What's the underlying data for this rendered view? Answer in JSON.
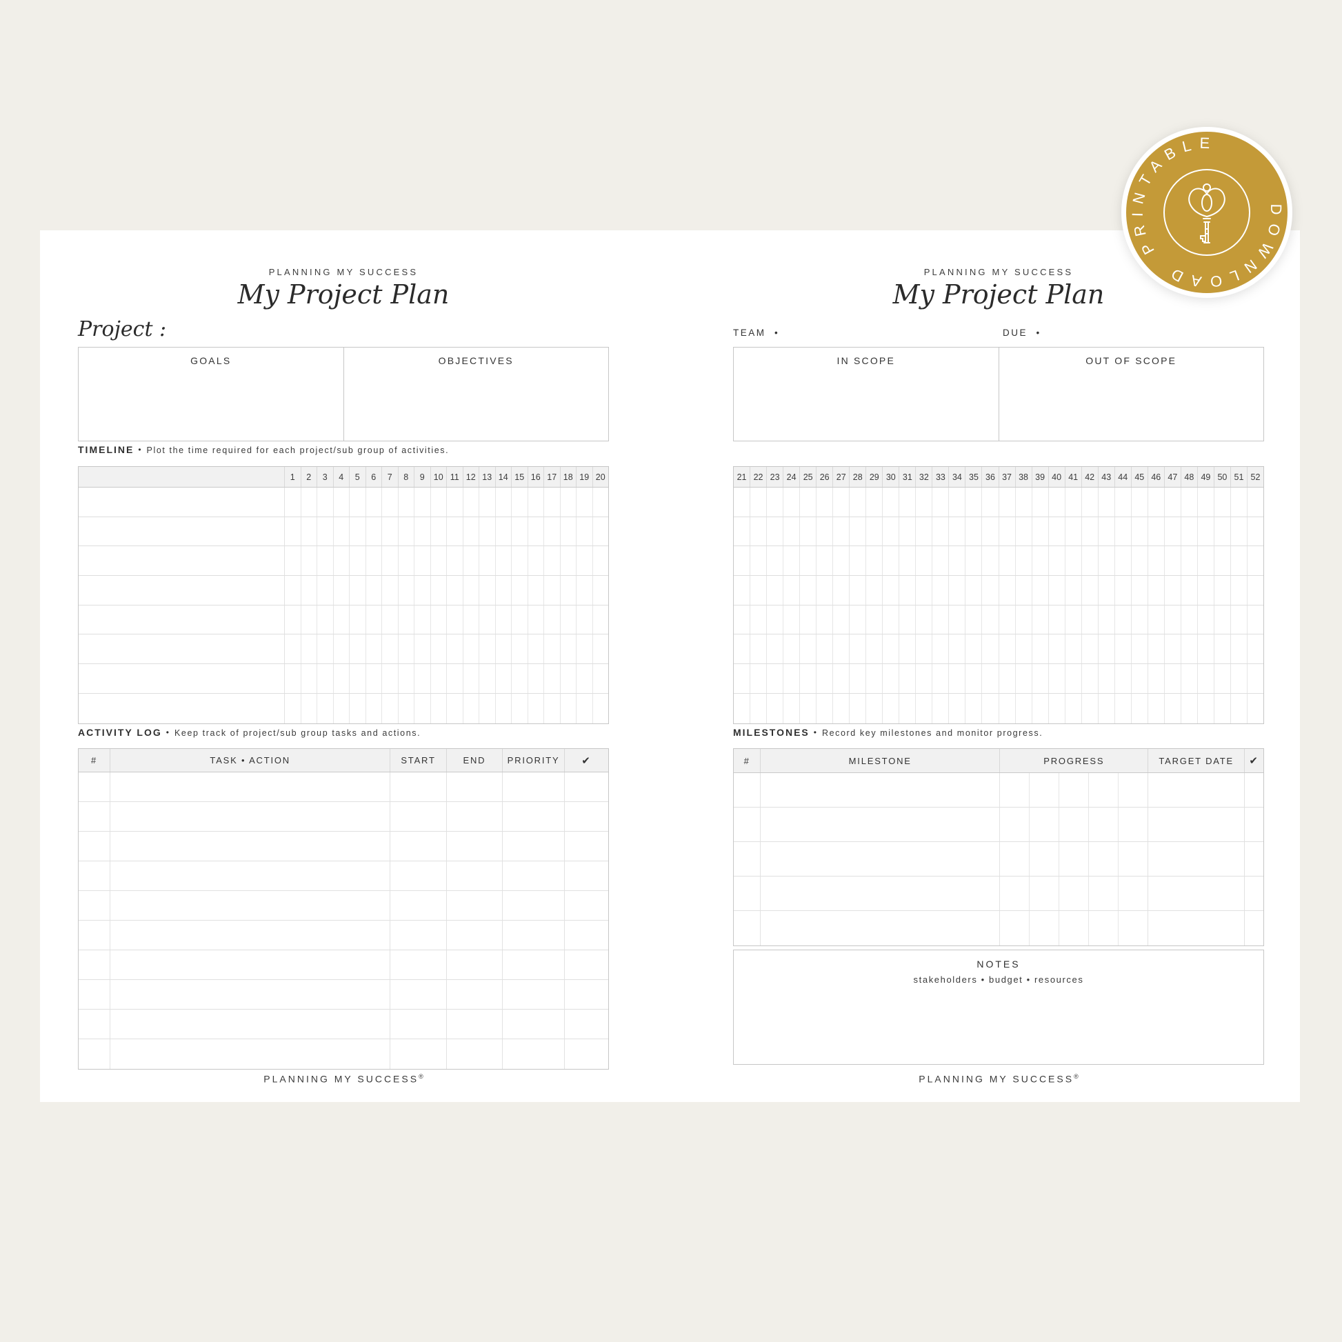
{
  "bullet": "•",
  "colors": {
    "badge_gold": "#c49a38",
    "background_cream": "#f1efe9",
    "paper_white": "#ffffff"
  },
  "badge": {
    "arc_top": "PRINTABLE",
    "arc_bottom": "DOWNLOAD",
    "icon": "key-icon"
  },
  "page_left": {
    "brand": "PLANNING MY SUCCESS",
    "title": "My Project Plan",
    "project_label": "Project :",
    "goals_table": {
      "col1": "GOALS",
      "col2": "OBJECTIVES"
    },
    "timeline": {
      "heading": "TIMELINE",
      "subtitle": "Plot the time required for each project/sub group of activities.",
      "week_numbers": [
        1,
        2,
        3,
        4,
        5,
        6,
        7,
        8,
        9,
        10,
        11,
        12,
        13,
        14,
        15,
        16,
        17,
        18,
        19,
        20
      ],
      "rows": 8
    },
    "activity_log": {
      "heading": "ACTIVITY LOG",
      "subtitle": "Keep track of project/sub group tasks and actions.",
      "columns": [
        "#",
        "TASK • ACTION",
        "START",
        "END",
        "PRIORITY",
        "✔"
      ],
      "rows": 10
    },
    "footer": "PLANNING MY SUCCESS",
    "footer_mark": "®"
  },
  "page_right": {
    "brand": "PLANNING MY SUCCESS",
    "title": "My Project Plan",
    "team_label": "TEAM",
    "due_label": "DUE",
    "scope_table": {
      "col1": "IN SCOPE",
      "col2": "OUT OF SCOPE"
    },
    "timeline": {
      "week_numbers": [
        21,
        22,
        23,
        24,
        25,
        26,
        27,
        28,
        29,
        30,
        31,
        32,
        33,
        34,
        35,
        36,
        37,
        38,
        39,
        40,
        41,
        42,
        43,
        44,
        45,
        46,
        47,
        48,
        49,
        50,
        51,
        52
      ],
      "rows": 8
    },
    "milestones": {
      "heading": "MILESTONES",
      "subtitle": "Record key milestones and monitor progress.",
      "columns": [
        "#",
        "MILESTONE",
        "PROGRESS",
        "TARGET DATE",
        "✔"
      ],
      "rows": 5,
      "progress_cells": 5
    },
    "notes": {
      "heading": "NOTES",
      "subtitle": "stakeholders  •  budget  •  resources"
    },
    "footer": "PLANNING MY SUCCESS",
    "footer_mark": "®"
  }
}
